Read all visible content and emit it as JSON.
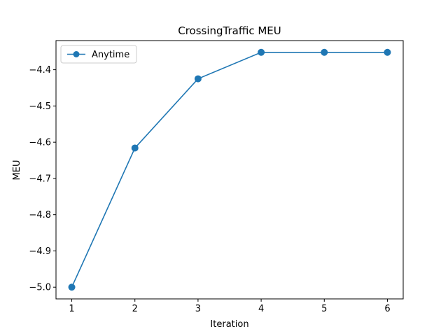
{
  "chart_data": {
    "type": "line",
    "title": "CrossingTraffic MEU",
    "xlabel": "Iteration",
    "ylabel": "MEU",
    "x": [
      1,
      2,
      3,
      4,
      5,
      6
    ],
    "series": [
      {
        "name": "Anytime",
        "values": [
          -5.0,
          -4.616,
          -4.425,
          -4.352,
          -4.352,
          -4.352
        ],
        "color": "#1f77b4",
        "marker": "circle"
      }
    ],
    "xticks": [
      "1",
      "2",
      "3",
      "4",
      "5",
      "6"
    ],
    "yticks": [
      "−4.4",
      "−4.5",
      "−4.6",
      "−4.7",
      "−4.8",
      "−4.9",
      "−5.0"
    ],
    "xlim": [
      0.75,
      6.25
    ],
    "ylim": [
      -5.0324,
      -4.3196
    ],
    "grid": false,
    "legend_position": "upper-left"
  }
}
